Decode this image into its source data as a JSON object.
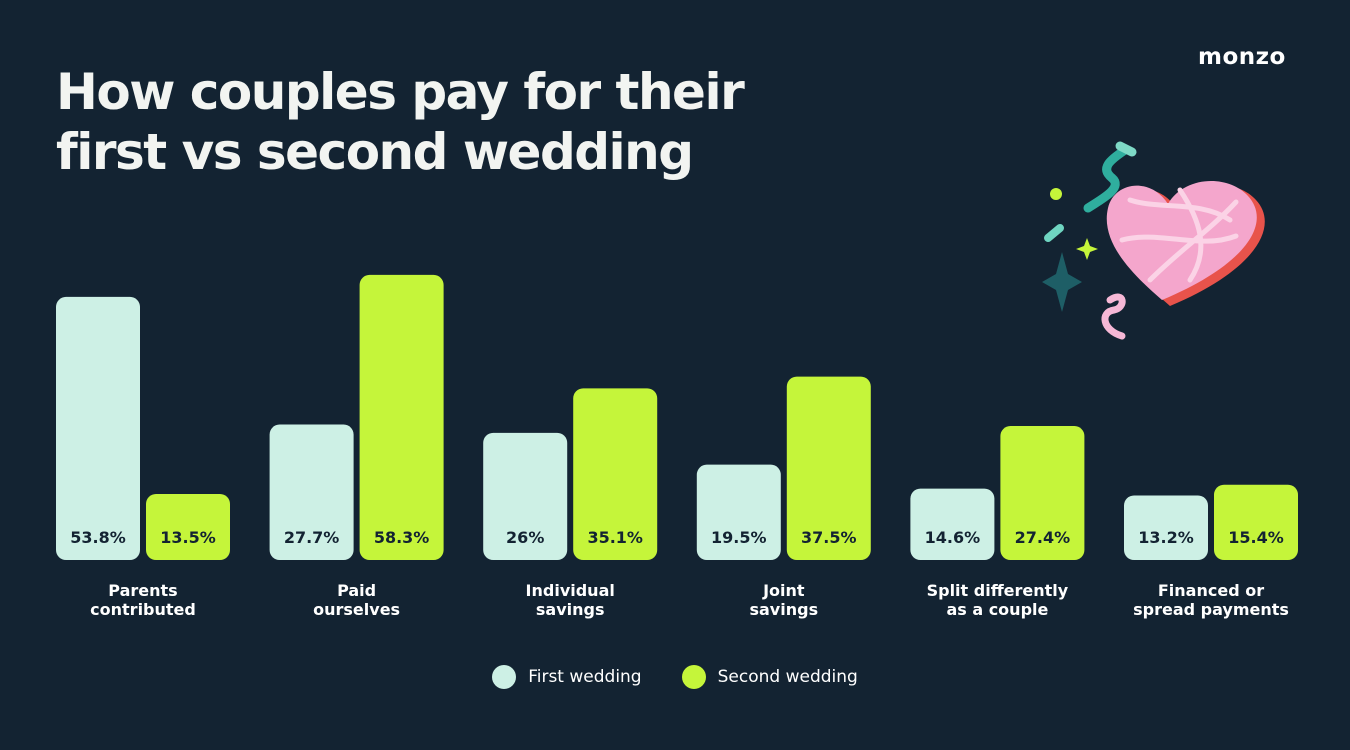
{
  "brand": "monzo",
  "title_lines": [
    "How couples pay for their",
    "first vs second wedding"
  ],
  "colors": {
    "background": "#132332",
    "first": "#cdf0e5",
    "second": "#c5f53a",
    "value_text": "#132332",
    "label_text": "#ffffff"
  },
  "decor_icons": [
    "confetti-ribbon-icon",
    "heart-icon",
    "sparkle-star-icon",
    "confetti-dot-icon"
  ],
  "chart_data": {
    "type": "bar",
    "title": "How couples pay for their first vs second wedding",
    "categories": [
      [
        "Parents",
        "contributed"
      ],
      [
        "Paid",
        "ourselves"
      ],
      [
        "Individual",
        "savings"
      ],
      [
        "Joint",
        "savings"
      ],
      [
        "Split differently",
        "as a couple"
      ],
      [
        "Financed or",
        "spread payments"
      ]
    ],
    "series": [
      {
        "name": "First wedding",
        "values": [
          53.8,
          27.7,
          26,
          19.5,
          14.6,
          13.2
        ]
      },
      {
        "name": "Second wedding",
        "values": [
          13.5,
          58.3,
          35.1,
          37.5,
          27.4,
          15.4
        ]
      }
    ],
    "value_labels": [
      [
        "53.8%",
        "27.7%",
        "26%",
        "19.5%",
        "14.6%",
        "13.2%"
      ],
      [
        "13.5%",
        "58.3%",
        "35.1%",
        "37.5%",
        "27.4%",
        "15.4%"
      ]
    ],
    "ylim": [
      0,
      60
    ],
    "grid": false,
    "legend": "bottom-center",
    "xlabel": "",
    "ylabel": ""
  }
}
